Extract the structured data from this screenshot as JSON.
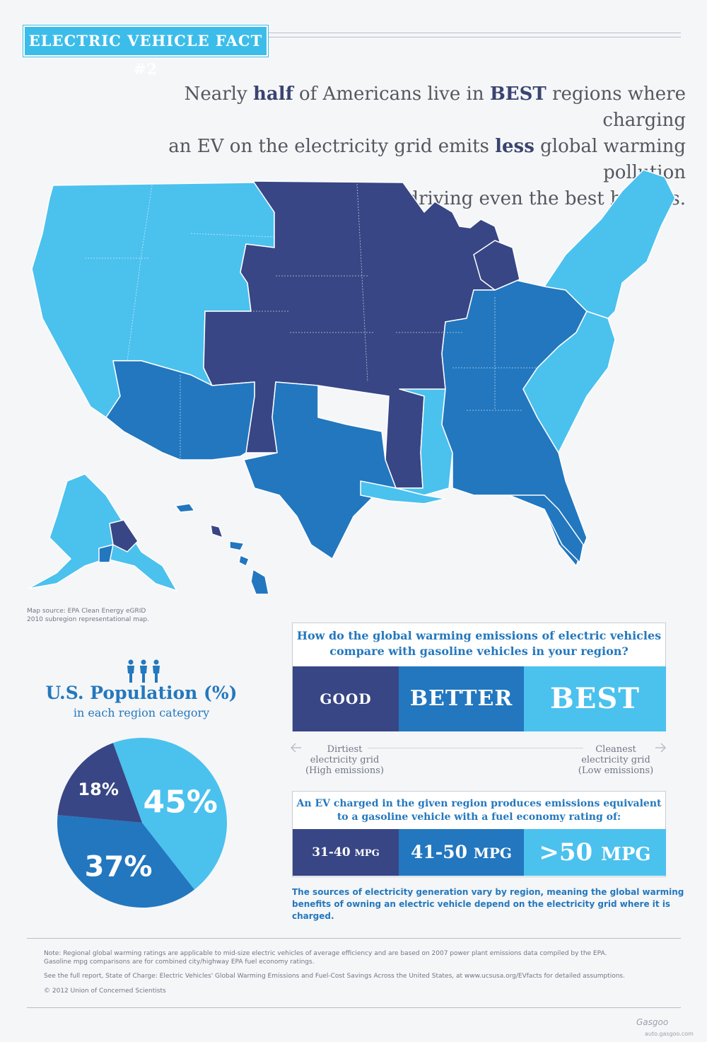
{
  "header": {
    "badge": "ELECTRIC VEHICLE FACT #2",
    "headline": {
      "l1a": "Nearly ",
      "l1b": "half",
      "l1c": " of Americans live in ",
      "l1d": "BEST",
      "l1e": " regions where charging",
      "l2a": "an EV on the electricity grid emits ",
      "l2b": "less",
      "l2c": " global warming pollution",
      "l3": "than driving even the best hybrids."
    }
  },
  "map": {
    "source_line1": "Map source: EPA Clean Energy eGRID",
    "source_line2": "2010 subregion representational map.",
    "colors": {
      "good": "#384685",
      "better": "#2277bf",
      "best": "#4bc1ee"
    }
  },
  "population": {
    "title": "U.S. Population (%)",
    "subtitle": "in each region category",
    "slices": [
      {
        "label": "45%",
        "value": 45,
        "color": "#4bc1ee"
      },
      {
        "label": "37%",
        "value": 37,
        "color": "#2277bf"
      },
      {
        "label": "18%",
        "value": 18,
        "color": "#384685"
      }
    ]
  },
  "comparison": {
    "question_l1": "How do the global warming emissions of electric vehicles",
    "question_l2": "compare with gasoline vehicles in your region?",
    "categories": [
      "GOOD",
      "BETTER",
      "BEST"
    ],
    "left_label_l1": "Dirtiest",
    "left_label_l2": "electricity grid",
    "left_label_l3": "(High emissions)",
    "right_label_l1": "Cleanest",
    "right_label_l2": "electricity grid",
    "right_label_l3": "(Low emissions)"
  },
  "mpg": {
    "text_l1": "An EV charged in the given region produces emissions equivalent",
    "text_l2": "to a gasoline vehicle with a fuel economy rating of:",
    "good_num": "31-40",
    "good_unit": "MPG",
    "better_num": "41-50",
    "better_unit": "MPG",
    "best_num": ">50",
    "best_unit": "MPG"
  },
  "sources_l1": "The sources of electricity generation vary by region, meaning the global warming",
  "sources_l2": "benefits of owning an electric vehicle depend on the electricity grid where it is charged.",
  "footer": {
    "note_l1": "Note: Regional global warming ratings are applicable to mid-size electric vehicles of average efficiency and are based on 2007 power plant emissions data compiled by the EPA.",
    "note_l2": "Gasoline mpg comparisons are for combined city/highway EPA fuel economy ratings.",
    "report": "See the full report, State of Charge: Electric Vehicles' Global Warming Emissions and Fuel-Cost Savings Across the United States, at www.ucsusa.org/EVfacts for detailed assumptions.",
    "copyright": "© 2012 Union of Concerned Scientists"
  },
  "watermark": {
    "brand": "Gasgoo",
    "url": "auto.gasgoo.com"
  }
}
